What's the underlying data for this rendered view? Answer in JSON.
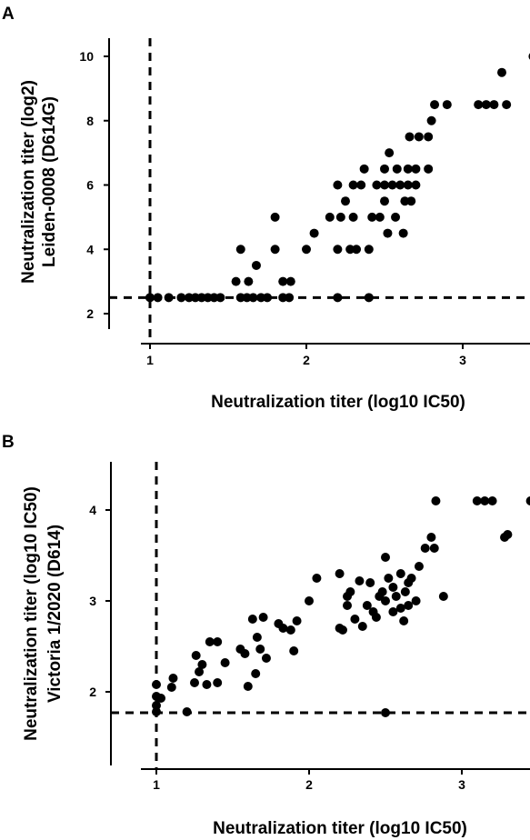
{
  "chart_data": [
    {
      "type": "scatter",
      "panel_label": "A",
      "title": "",
      "xlabel": "Neutralization titer (log10 IC50)",
      "ylabel_line1": "Neutralization titer (log2)",
      "ylabel_line2": "Leiden-0008 (D614G)",
      "xlim": [
        0.85,
        3.5
      ],
      "ylim": [
        1.0,
        10.5
      ],
      "x_ticks": [
        1,
        2,
        3
      ],
      "y_ticks": [
        2,
        4,
        6,
        8,
        10
      ],
      "ref_x": 1.0,
      "ref_y": 2.5,
      "grid": false,
      "points": [
        [
          1.0,
          2.5
        ],
        [
          1.05,
          2.5
        ],
        [
          1.12,
          2.5
        ],
        [
          1.2,
          2.5
        ],
        [
          1.25,
          2.5
        ],
        [
          1.29,
          2.5
        ],
        [
          1.33,
          2.5
        ],
        [
          1.37,
          2.5
        ],
        [
          1.41,
          2.5
        ],
        [
          1.45,
          2.5
        ],
        [
          1.55,
          3.0
        ],
        [
          1.58,
          2.5
        ],
        [
          1.58,
          4.0
        ],
        [
          1.62,
          2.5
        ],
        [
          1.63,
          3.0
        ],
        [
          1.66,
          2.5
        ],
        [
          1.68,
          3.5
        ],
        [
          1.71,
          2.5
        ],
        [
          1.75,
          2.5
        ],
        [
          1.8,
          4.0
        ],
        [
          1.8,
          5.0
        ],
        [
          1.85,
          2.5
        ],
        [
          1.85,
          3.0
        ],
        [
          1.89,
          2.5
        ],
        [
          1.9,
          3.0
        ],
        [
          2.0,
          4.0
        ],
        [
          2.05,
          4.5
        ],
        [
          2.15,
          5.0
        ],
        [
          2.2,
          4.0
        ],
        [
          2.2,
          6.0
        ],
        [
          2.2,
          2.5
        ],
        [
          2.22,
          5.0
        ],
        [
          2.25,
          5.5
        ],
        [
          2.28,
          4.0
        ],
        [
          2.3,
          5.0
        ],
        [
          2.3,
          6.0
        ],
        [
          2.32,
          4.0
        ],
        [
          2.35,
          6.0
        ],
        [
          2.37,
          6.5
        ],
        [
          2.4,
          4.0
        ],
        [
          2.4,
          2.5
        ],
        [
          2.42,
          5.0
        ],
        [
          2.45,
          6.0
        ],
        [
          2.47,
          5.0
        ],
        [
          2.5,
          5.5
        ],
        [
          2.5,
          6.0
        ],
        [
          2.5,
          6.5
        ],
        [
          2.52,
          4.5
        ],
        [
          2.53,
          7.0
        ],
        [
          2.55,
          6.0
        ],
        [
          2.57,
          5.0
        ],
        [
          2.58,
          6.5
        ],
        [
          2.6,
          6.0
        ],
        [
          2.62,
          4.5
        ],
        [
          2.63,
          5.5
        ],
        [
          2.65,
          6.0
        ],
        [
          2.65,
          6.5
        ],
        [
          2.66,
          7.5
        ],
        [
          2.67,
          5.5
        ],
        [
          2.7,
          6.0
        ],
        [
          2.7,
          6.5
        ],
        [
          2.72,
          7.5
        ],
        [
          2.78,
          6.5
        ],
        [
          2.78,
          7.5
        ],
        [
          2.8,
          8.0
        ],
        [
          2.82,
          8.5
        ],
        [
          2.9,
          8.5
        ],
        [
          3.1,
          8.5
        ],
        [
          3.15,
          8.5
        ],
        [
          3.2,
          8.5
        ],
        [
          3.25,
          9.5
        ],
        [
          3.28,
          8.5
        ],
        [
          3.45,
          10.0
        ]
      ]
    },
    {
      "type": "scatter",
      "panel_label": "B",
      "title": "",
      "xlabel": "Neutralization titer (log10 IC50)",
      "ylabel_line1": "Neutralization titer (log10 IC50)",
      "ylabel_line2": "Victoria 1/2020 (D614)",
      "xlim": [
        0.9,
        3.5
      ],
      "ylim": [
        1.5,
        4.5
      ],
      "x_ticks": [
        1,
        2,
        3
      ],
      "y_ticks": [
        2,
        3,
        4
      ],
      "ref_x": 1.0,
      "ref_y": 1.77,
      "grid": false,
      "points": [
        [
          1.0,
          1.78
        ],
        [
          1.0,
          1.85
        ],
        [
          1.0,
          1.95
        ],
        [
          1.0,
          2.08
        ],
        [
          1.03,
          1.93
        ],
        [
          1.1,
          2.05
        ],
        [
          1.11,
          2.15
        ],
        [
          1.2,
          1.78
        ],
        [
          1.25,
          2.1
        ],
        [
          1.26,
          2.4
        ],
        [
          1.28,
          2.22
        ],
        [
          1.3,
          2.3
        ],
        [
          1.33,
          2.08
        ],
        [
          1.35,
          2.55
        ],
        [
          1.4,
          2.1
        ],
        [
          1.4,
          2.55
        ],
        [
          1.45,
          2.32
        ],
        [
          1.55,
          2.47
        ],
        [
          1.58,
          2.42
        ],
        [
          1.6,
          2.06
        ],
        [
          1.63,
          2.8
        ],
        [
          1.65,
          2.2
        ],
        [
          1.66,
          2.6
        ],
        [
          1.68,
          2.47
        ],
        [
          1.7,
          2.82
        ],
        [
          1.72,
          2.37
        ],
        [
          1.8,
          2.75
        ],
        [
          1.83,
          2.7
        ],
        [
          1.88,
          2.68
        ],
        [
          1.9,
          2.45
        ],
        [
          1.92,
          2.78
        ],
        [
          2.0,
          3.0
        ],
        [
          2.05,
          3.25
        ],
        [
          2.2,
          3.3
        ],
        [
          2.2,
          2.7
        ],
        [
          2.22,
          2.68
        ],
        [
          2.25,
          3.05
        ],
        [
          2.25,
          2.95
        ],
        [
          2.27,
          3.1
        ],
        [
          2.3,
          2.8
        ],
        [
          2.33,
          3.22
        ],
        [
          2.35,
          2.72
        ],
        [
          2.38,
          2.95
        ],
        [
          2.4,
          3.2
        ],
        [
          2.42,
          2.88
        ],
        [
          2.44,
          2.82
        ],
        [
          2.46,
          3.05
        ],
        [
          2.48,
          3.1
        ],
        [
          2.5,
          3.0
        ],
        [
          2.5,
          3.48
        ],
        [
          2.52,
          3.25
        ],
        [
          2.55,
          2.88
        ],
        [
          2.55,
          3.15
        ],
        [
          2.57,
          3.05
        ],
        [
          2.6,
          3.3
        ],
        [
          2.6,
          2.92
        ],
        [
          2.62,
          2.78
        ],
        [
          2.63,
          3.1
        ],
        [
          2.65,
          3.2
        ],
        [
          2.65,
          2.95
        ],
        [
          2.67,
          3.25
        ],
        [
          2.7,
          3.0
        ],
        [
          2.72,
          3.38
        ],
        [
          2.5,
          1.77
        ],
        [
          2.76,
          3.58
        ],
        [
          2.8,
          3.7
        ],
        [
          2.82,
          3.58
        ],
        [
          2.83,
          4.1
        ],
        [
          2.88,
          3.05
        ],
        [
          3.1,
          4.1
        ],
        [
          3.15,
          4.1
        ],
        [
          3.2,
          4.1
        ],
        [
          3.28,
          3.7
        ],
        [
          3.3,
          3.73
        ],
        [
          3.45,
          4.1
        ]
      ]
    }
  ]
}
